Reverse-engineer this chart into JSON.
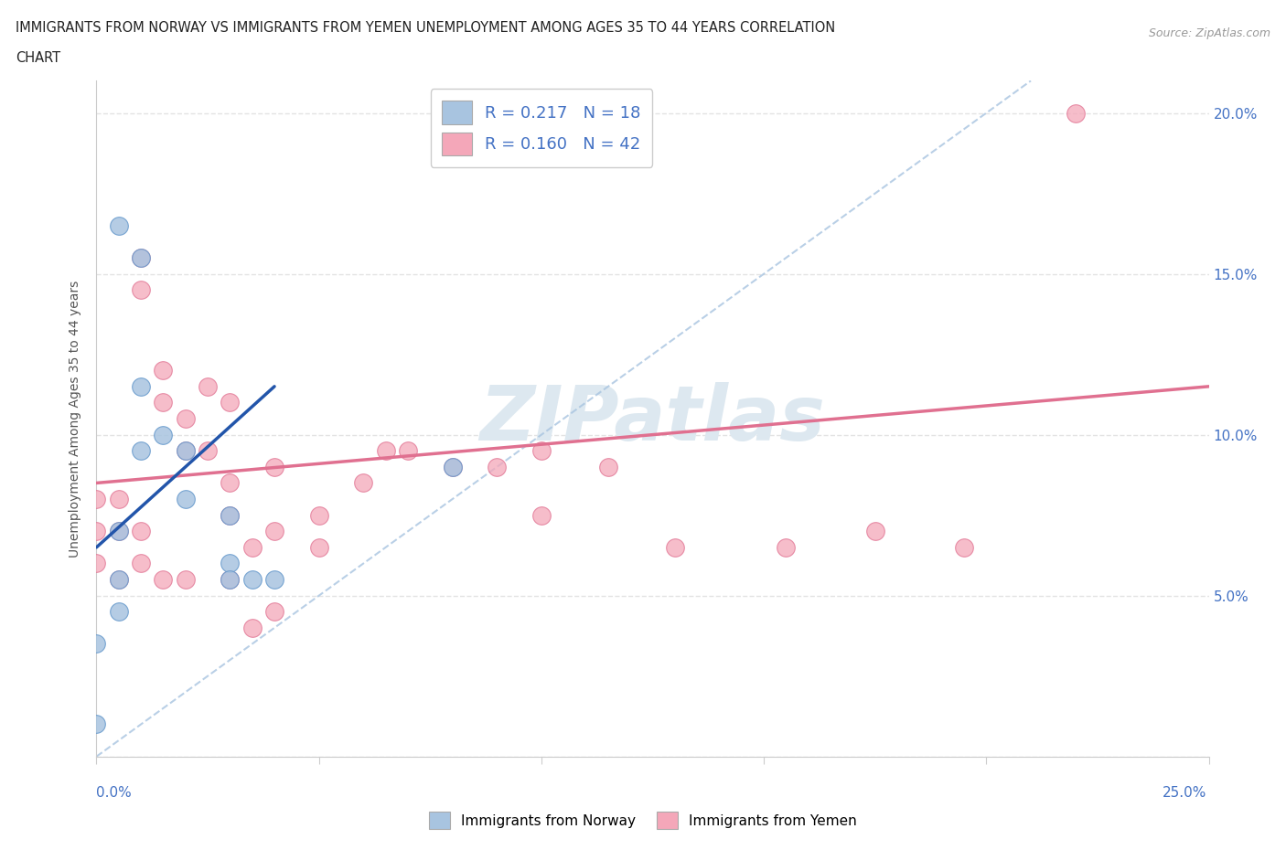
{
  "title_line1": "IMMIGRANTS FROM NORWAY VS IMMIGRANTS FROM YEMEN UNEMPLOYMENT AMONG AGES 35 TO 44 YEARS CORRELATION",
  "title_line2": "CHART",
  "source_text": "Source: ZipAtlas.com",
  "ylabel": "Unemployment Among Ages 35 to 44 years",
  "xlim": [
    0.0,
    0.25
  ],
  "ylim": [
    0.0,
    0.21
  ],
  "yticks": [
    0.0,
    0.05,
    0.1,
    0.15,
    0.2
  ],
  "ytick_labels": [
    "",
    "5.0%",
    "10.0%",
    "15.0%",
    "20.0%"
  ],
  "norway_color": "#a8c4e0",
  "norway_edge_color": "#6699cc",
  "yemen_color": "#f4a7b9",
  "yemen_edge_color": "#e07090",
  "norway_R": 0.217,
  "norway_N": 18,
  "yemen_R": 0.16,
  "yemen_N": 42,
  "norway_scatter_x": [
    0.005,
    0.01,
    0.01,
    0.01,
    0.015,
    0.02,
    0.02,
    0.03,
    0.03,
    0.03,
    0.035,
    0.04,
    0.005,
    0.005,
    0.005,
    0.08,
    0.0,
    0.0
  ],
  "norway_scatter_y": [
    0.165,
    0.155,
    0.115,
    0.095,
    0.1,
    0.095,
    0.08,
    0.075,
    0.06,
    0.055,
    0.055,
    0.055,
    0.07,
    0.055,
    0.045,
    0.09,
    0.035,
    0.01
  ],
  "yemen_scatter_x": [
    0.01,
    0.01,
    0.015,
    0.015,
    0.02,
    0.02,
    0.025,
    0.025,
    0.03,
    0.03,
    0.03,
    0.035,
    0.04,
    0.04,
    0.05,
    0.05,
    0.06,
    0.065,
    0.07,
    0.08,
    0.09,
    0.1,
    0.1,
    0.115,
    0.13,
    0.155,
    0.175,
    0.195,
    0.22,
    0.0,
    0.0,
    0.0,
    0.005,
    0.005,
    0.005,
    0.01,
    0.01,
    0.015,
    0.02,
    0.03,
    0.035,
    0.04
  ],
  "yemen_scatter_y": [
    0.155,
    0.145,
    0.12,
    0.11,
    0.105,
    0.095,
    0.115,
    0.095,
    0.11,
    0.085,
    0.075,
    0.065,
    0.09,
    0.07,
    0.075,
    0.065,
    0.085,
    0.095,
    0.095,
    0.09,
    0.09,
    0.095,
    0.075,
    0.09,
    0.065,
    0.065,
    0.07,
    0.065,
    0.2,
    0.08,
    0.07,
    0.06,
    0.08,
    0.07,
    0.055,
    0.07,
    0.06,
    0.055,
    0.055,
    0.055,
    0.04,
    0.045
  ],
  "norway_line_color": "#2255aa",
  "norway_line_x": [
    0.0,
    0.04
  ],
  "norway_line_y": [
    0.065,
    0.115
  ],
  "yemen_line_color": "#e07090",
  "yemen_line_x": [
    0.0,
    0.25
  ],
  "yemen_line_y": [
    0.085,
    0.115
  ],
  "diag_line_color": "#a8c4e0",
  "diag_line_style": "--",
  "watermark_text": "ZIPatlas",
  "watermark_color": "#dde8f0",
  "legend_norway_color": "#a8c4e0",
  "legend_yemen_color": "#f4a7b9",
  "legend_text_color": "#4472c4",
  "background_color": "#ffffff",
  "grid_color": "#dddddd",
  "grid_style": "--"
}
